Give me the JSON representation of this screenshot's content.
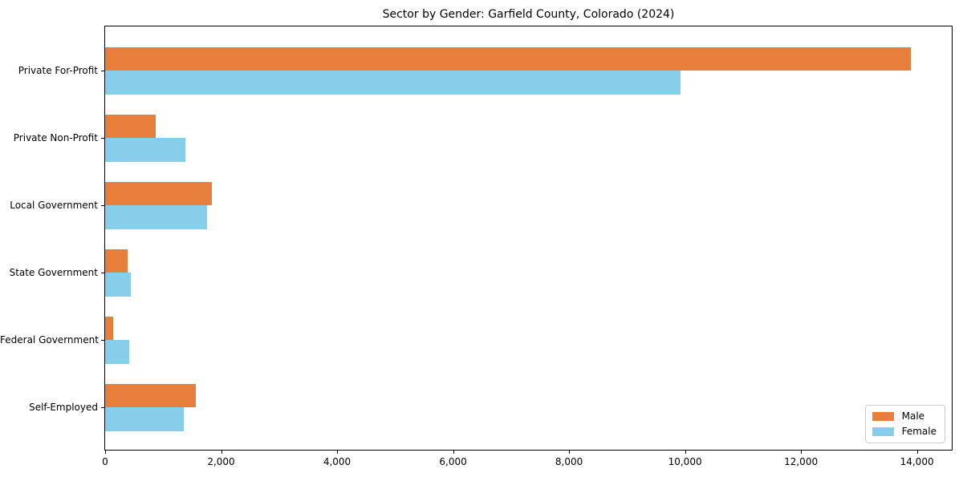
{
  "chart_data": {
    "type": "bar",
    "orientation": "horizontal",
    "title": "Sector by Gender: Garfield County, Colorado (2024)",
    "categories": [
      "Private For-Profit",
      "Private Non-Profit",
      "Local Government",
      "State Government",
      "Federal Government",
      "Self-Employed"
    ],
    "series": [
      {
        "name": "Male",
        "color": "#e87e3c",
        "values": [
          13900,
          870,
          1840,
          390,
          135,
          1570
        ]
      },
      {
        "name": "Female",
        "color": "#87ceeb",
        "values": [
          9920,
          1390,
          1750,
          440,
          410,
          1350
        ]
      }
    ],
    "xlabel": "",
    "ylabel": "",
    "xlim": [
      0,
      14600
    ],
    "x_ticks": [
      0,
      2000,
      4000,
      6000,
      8000,
      10000,
      12000,
      14000
    ],
    "x_tick_labels": [
      "0",
      "2,000",
      "4,000",
      "6,000",
      "8,000",
      "10,000",
      "12,000",
      "14,000"
    ],
    "grid": false,
    "legend_position": "lower right",
    "colors": {
      "male": "#e87e3c",
      "female": "#87ceeb",
      "spine": "#000000",
      "legend_border": "#cccccc",
      "background": "#ffffff"
    }
  }
}
